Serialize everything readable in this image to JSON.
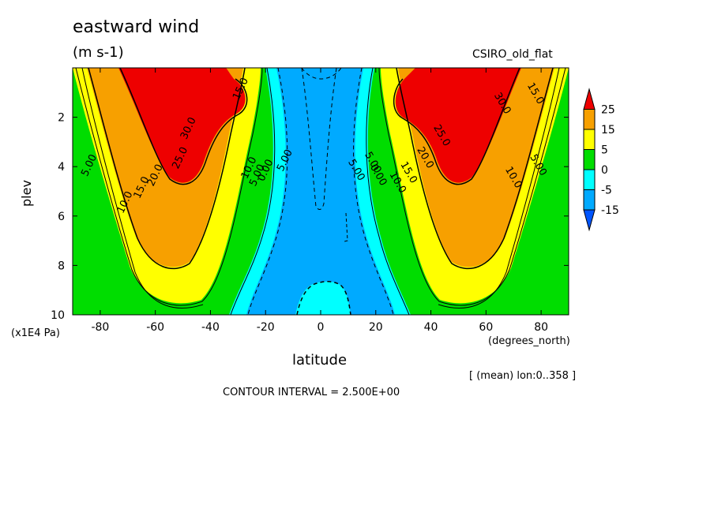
{
  "figure": {
    "title": "eastward wind",
    "units": "(m s-1)",
    "dataset": "CSIRO_old_flat",
    "ylabel": "plev",
    "yunit": "(x1E4 Pa)",
    "xunit": "(degrees_north)",
    "xlabel": "latitude",
    "mean_note": "[ (mean) lon:0..358 ]",
    "contour_interval": "CONTOUR INTERVAL = 2.500E+00"
  },
  "chart_data": {
    "type": "heatmap",
    "variable": "eastward wind",
    "units": "m s-1",
    "x": {
      "label": "latitude",
      "range": [
        -90,
        90
      ],
      "ticks": [
        -80,
        -60,
        -40,
        -20,
        0,
        20,
        40,
        60,
        80
      ],
      "tick_labels": [
        "-80",
        "-60",
        "-40",
        "-20",
        "0",
        "20",
        "40",
        "60",
        "80"
      ]
    },
    "y": {
      "label": "plev",
      "range": [
        10,
        0
      ],
      "ticks": [
        2,
        4,
        6,
        8,
        10
      ],
      "tick_labels": [
        "2",
        "4",
        "6",
        "8",
        "10"
      ]
    },
    "colorbar": {
      "labels": [
        "25",
        "15",
        "5",
        "0",
        "-5",
        "-15"
      ],
      "bins": [
        {
          "from": 25,
          "color": "#ee0000"
        },
        {
          "from": 15,
          "to": 25,
          "color": "#f7a000"
        },
        {
          "from": 5,
          "to": 15,
          "color": "#ffff00"
        },
        {
          "from": 0,
          "to": 5,
          "color": "#00dd00"
        },
        {
          "from": -5,
          "to": 0,
          "color": "#00ffff"
        },
        {
          "from": -15,
          "to": -5,
          "color": "#00aaff"
        },
        {
          "to": -15,
          "color": "#0055ff"
        }
      ]
    },
    "contour_labels": [
      {
        "text": "5.00",
        "lat": -83,
        "p": 4.0
      },
      {
        "text": "10.0",
        "lat": -70,
        "p": 5.5
      },
      {
        "text": "15.0",
        "lat": -64,
        "p": 4.9
      },
      {
        "text": "20.0",
        "lat": -59,
        "p": 4.4
      },
      {
        "text": "25.0",
        "lat": -50,
        "p": 3.7
      },
      {
        "text": "30.0",
        "lat": -47,
        "p": 2.5
      },
      {
        "text": "15.0",
        "lat": -28,
        "p": 0.9
      },
      {
        "text": "10.0",
        "lat": -25,
        "p": 4.1
      },
      {
        "text": "5.00",
        "lat": -22,
        "p": 4.4
      },
      {
        "text": "0.00",
        "lat": -19,
        "p": 4.2
      },
      {
        "text": "5.00",
        "lat": -12,
        "p": 3.8
      },
      {
        "text": "5.00",
        "lat": 12,
        "p": 4.2
      },
      {
        "text": "0.00",
        "lat": 20,
        "p": 4.4
      },
      {
        "text": "5.00",
        "lat": 18,
        "p": 3.9
      },
      {
        "text": "10.0",
        "lat": 27,
        "p": 4.7
      },
      {
        "text": "15.0",
        "lat": 31,
        "p": 4.3
      },
      {
        "text": "20.0",
        "lat": 37,
        "p": 3.7
      },
      {
        "text": "25.0",
        "lat": 43,
        "p": 2.8
      },
      {
        "text": "30.0",
        "lat": 65,
        "p": 1.5
      },
      {
        "text": "15.0",
        "lat": 77,
        "p": 1.1
      },
      {
        "text": "10.0",
        "lat": 69,
        "p": 4.5
      },
      {
        "text": "5.00",
        "lat": 78,
        "p": 4.0
      }
    ],
    "grid": false
  }
}
